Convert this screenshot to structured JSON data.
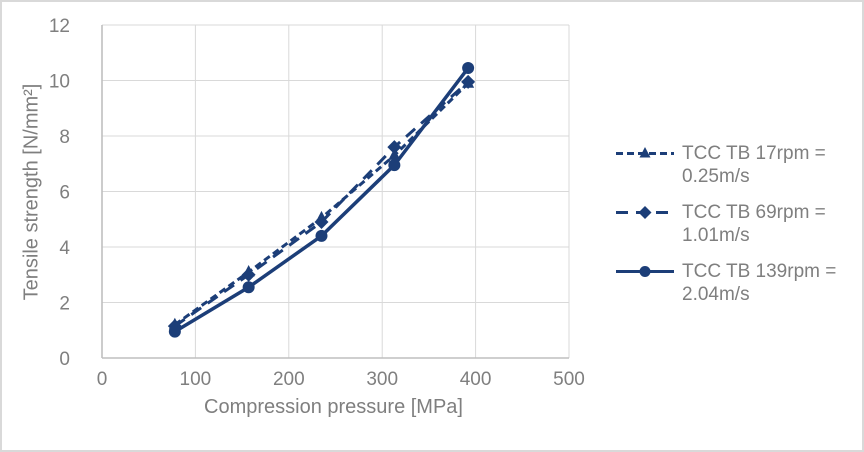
{
  "window": {
    "background": "#ffffff",
    "border_color": "#d9d9d9"
  },
  "chart_data": {
    "type": "line",
    "title": "",
    "xlabel": "Compression pressure [MPa]",
    "ylabel": "Tensile strength [N/mm²]",
    "xlim": [
      0,
      500
    ],
    "ylim": [
      0,
      12
    ],
    "x_ticks": [
      0,
      100,
      200,
      300,
      400,
      500
    ],
    "y_ticks": [
      0,
      2,
      4,
      6,
      8,
      10,
      12
    ],
    "grid": true,
    "legend_position": "right",
    "gridline_color": "#d9d9d9",
    "axis_line_color": "#bfbfbf",
    "axis_text_color": "#7f7f7f",
    "series_color": "#1c3e78",
    "x": [
      78,
      157,
      235,
      313,
      392
    ],
    "series": [
      {
        "name": "TCC TB 17rpm = 0.25m/s",
        "legend_lines": [
          "TCC TB 17rpm =",
          "0.25m/s"
        ],
        "marker": "triangle",
        "line_style": "dashed-short",
        "values": [
          1.2,
          3.1,
          5.05,
          7.3,
          9.9
        ]
      },
      {
        "name": "TCC TB 69rpm = 1.01m/s",
        "legend_lines": [
          "TCC TB 69rpm =",
          "1.01m/s"
        ],
        "marker": "diamond",
        "line_style": "dashed-long",
        "values": [
          1.15,
          3.0,
          4.9,
          7.6,
          9.95
        ]
      },
      {
        "name": "TCC TB 139rpm = 2.04m/s",
        "legend_lines": [
          "TCC TB 139rpm =",
          "2.04m/s"
        ],
        "marker": "circle",
        "line_style": "solid",
        "values": [
          0.95,
          2.55,
          4.4,
          6.95,
          10.45
        ]
      }
    ]
  }
}
